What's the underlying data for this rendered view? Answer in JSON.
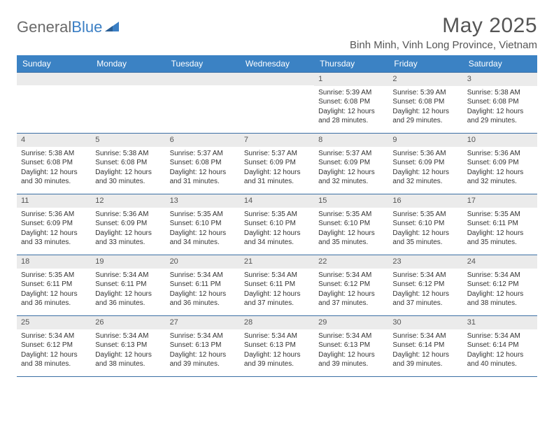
{
  "brand": {
    "part1": "General",
    "part2": "Blue"
  },
  "title": "May 2025",
  "location": "Binh Minh, Vinh Long Province, Vietnam",
  "colors": {
    "header_bg": "#3b82c4",
    "header_text": "#ffffff",
    "week_border": "#3b6fa4",
    "daynum_bg": "#ebebeb",
    "text": "#333333",
    "title_text": "#555555",
    "logo_gray": "#6a6a6a",
    "logo_blue": "#3b7fc4"
  },
  "fonts": {
    "title_size": 30,
    "location_size": 15,
    "dayheader_size": 12,
    "daynum_size": 11,
    "cell_size": 10
  },
  "day_labels": [
    "Sunday",
    "Monday",
    "Tuesday",
    "Wednesday",
    "Thursday",
    "Friday",
    "Saturday"
  ],
  "weeks": [
    [
      {
        "n": "",
        "sunrise": "",
        "sunset": "",
        "daylight": ""
      },
      {
        "n": "",
        "sunrise": "",
        "sunset": "",
        "daylight": ""
      },
      {
        "n": "",
        "sunrise": "",
        "sunset": "",
        "daylight": ""
      },
      {
        "n": "",
        "sunrise": "",
        "sunset": "",
        "daylight": ""
      },
      {
        "n": "1",
        "sunrise": "Sunrise: 5:39 AM",
        "sunset": "Sunset: 6:08 PM",
        "daylight": "Daylight: 12 hours and 28 minutes."
      },
      {
        "n": "2",
        "sunrise": "Sunrise: 5:39 AM",
        "sunset": "Sunset: 6:08 PM",
        "daylight": "Daylight: 12 hours and 29 minutes."
      },
      {
        "n": "3",
        "sunrise": "Sunrise: 5:38 AM",
        "sunset": "Sunset: 6:08 PM",
        "daylight": "Daylight: 12 hours and 29 minutes."
      }
    ],
    [
      {
        "n": "4",
        "sunrise": "Sunrise: 5:38 AM",
        "sunset": "Sunset: 6:08 PM",
        "daylight": "Daylight: 12 hours and 30 minutes."
      },
      {
        "n": "5",
        "sunrise": "Sunrise: 5:38 AM",
        "sunset": "Sunset: 6:08 PM",
        "daylight": "Daylight: 12 hours and 30 minutes."
      },
      {
        "n": "6",
        "sunrise": "Sunrise: 5:37 AM",
        "sunset": "Sunset: 6:08 PM",
        "daylight": "Daylight: 12 hours and 31 minutes."
      },
      {
        "n": "7",
        "sunrise": "Sunrise: 5:37 AM",
        "sunset": "Sunset: 6:09 PM",
        "daylight": "Daylight: 12 hours and 31 minutes."
      },
      {
        "n": "8",
        "sunrise": "Sunrise: 5:37 AM",
        "sunset": "Sunset: 6:09 PM",
        "daylight": "Daylight: 12 hours and 32 minutes."
      },
      {
        "n": "9",
        "sunrise": "Sunrise: 5:36 AM",
        "sunset": "Sunset: 6:09 PM",
        "daylight": "Daylight: 12 hours and 32 minutes."
      },
      {
        "n": "10",
        "sunrise": "Sunrise: 5:36 AM",
        "sunset": "Sunset: 6:09 PM",
        "daylight": "Daylight: 12 hours and 32 minutes."
      }
    ],
    [
      {
        "n": "11",
        "sunrise": "Sunrise: 5:36 AM",
        "sunset": "Sunset: 6:09 PM",
        "daylight": "Daylight: 12 hours and 33 minutes."
      },
      {
        "n": "12",
        "sunrise": "Sunrise: 5:36 AM",
        "sunset": "Sunset: 6:09 PM",
        "daylight": "Daylight: 12 hours and 33 minutes."
      },
      {
        "n": "13",
        "sunrise": "Sunrise: 5:35 AM",
        "sunset": "Sunset: 6:10 PM",
        "daylight": "Daylight: 12 hours and 34 minutes."
      },
      {
        "n": "14",
        "sunrise": "Sunrise: 5:35 AM",
        "sunset": "Sunset: 6:10 PM",
        "daylight": "Daylight: 12 hours and 34 minutes."
      },
      {
        "n": "15",
        "sunrise": "Sunrise: 5:35 AM",
        "sunset": "Sunset: 6:10 PM",
        "daylight": "Daylight: 12 hours and 35 minutes."
      },
      {
        "n": "16",
        "sunrise": "Sunrise: 5:35 AM",
        "sunset": "Sunset: 6:10 PM",
        "daylight": "Daylight: 12 hours and 35 minutes."
      },
      {
        "n": "17",
        "sunrise": "Sunrise: 5:35 AM",
        "sunset": "Sunset: 6:11 PM",
        "daylight": "Daylight: 12 hours and 35 minutes."
      }
    ],
    [
      {
        "n": "18",
        "sunrise": "Sunrise: 5:35 AM",
        "sunset": "Sunset: 6:11 PM",
        "daylight": "Daylight: 12 hours and 36 minutes."
      },
      {
        "n": "19",
        "sunrise": "Sunrise: 5:34 AM",
        "sunset": "Sunset: 6:11 PM",
        "daylight": "Daylight: 12 hours and 36 minutes."
      },
      {
        "n": "20",
        "sunrise": "Sunrise: 5:34 AM",
        "sunset": "Sunset: 6:11 PM",
        "daylight": "Daylight: 12 hours and 36 minutes."
      },
      {
        "n": "21",
        "sunrise": "Sunrise: 5:34 AM",
        "sunset": "Sunset: 6:11 PM",
        "daylight": "Daylight: 12 hours and 37 minutes."
      },
      {
        "n": "22",
        "sunrise": "Sunrise: 5:34 AM",
        "sunset": "Sunset: 6:12 PM",
        "daylight": "Daylight: 12 hours and 37 minutes."
      },
      {
        "n": "23",
        "sunrise": "Sunrise: 5:34 AM",
        "sunset": "Sunset: 6:12 PM",
        "daylight": "Daylight: 12 hours and 37 minutes."
      },
      {
        "n": "24",
        "sunrise": "Sunrise: 5:34 AM",
        "sunset": "Sunset: 6:12 PM",
        "daylight": "Daylight: 12 hours and 38 minutes."
      }
    ],
    [
      {
        "n": "25",
        "sunrise": "Sunrise: 5:34 AM",
        "sunset": "Sunset: 6:12 PM",
        "daylight": "Daylight: 12 hours and 38 minutes."
      },
      {
        "n": "26",
        "sunrise": "Sunrise: 5:34 AM",
        "sunset": "Sunset: 6:13 PM",
        "daylight": "Daylight: 12 hours and 38 minutes."
      },
      {
        "n": "27",
        "sunrise": "Sunrise: 5:34 AM",
        "sunset": "Sunset: 6:13 PM",
        "daylight": "Daylight: 12 hours and 39 minutes."
      },
      {
        "n": "28",
        "sunrise": "Sunrise: 5:34 AM",
        "sunset": "Sunset: 6:13 PM",
        "daylight": "Daylight: 12 hours and 39 minutes."
      },
      {
        "n": "29",
        "sunrise": "Sunrise: 5:34 AM",
        "sunset": "Sunset: 6:13 PM",
        "daylight": "Daylight: 12 hours and 39 minutes."
      },
      {
        "n": "30",
        "sunrise": "Sunrise: 5:34 AM",
        "sunset": "Sunset: 6:14 PM",
        "daylight": "Daylight: 12 hours and 39 minutes."
      },
      {
        "n": "31",
        "sunrise": "Sunrise: 5:34 AM",
        "sunset": "Sunset: 6:14 PM",
        "daylight": "Daylight: 12 hours and 40 minutes."
      }
    ]
  ]
}
